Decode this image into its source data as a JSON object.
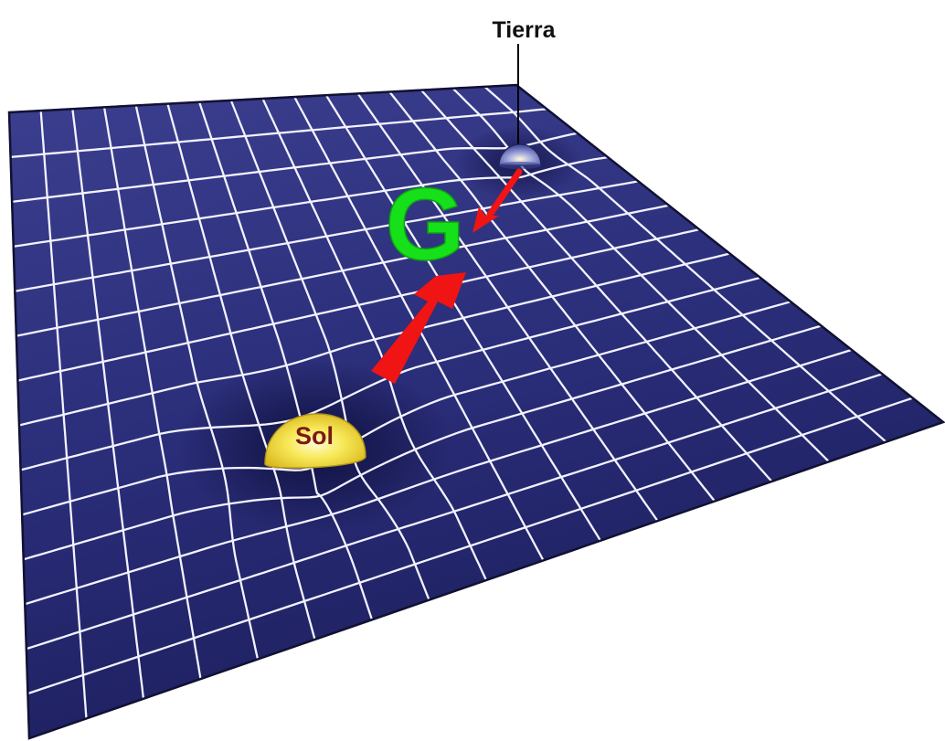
{
  "labels": {
    "earth": "Tierra",
    "sun": "Sol",
    "gravity": "G"
  },
  "colors": {
    "background": "#ffffff",
    "sheet_dark": "#1d1f5e",
    "sheet_light": "#3b3f8f",
    "grid_lines": "#f2f2ff",
    "sun_fill": "#f3df3a",
    "sun_text": "#7a1a12",
    "earth_fill": "#8d96d6",
    "arrow": "#f01414",
    "gravity_letter": "#16e01a",
    "leader_line": "#000000"
  },
  "icons": {
    "sun": "sun-sphere-icon",
    "earth": "earth-sphere-icon",
    "force_arrow": "arrow-icon"
  }
}
